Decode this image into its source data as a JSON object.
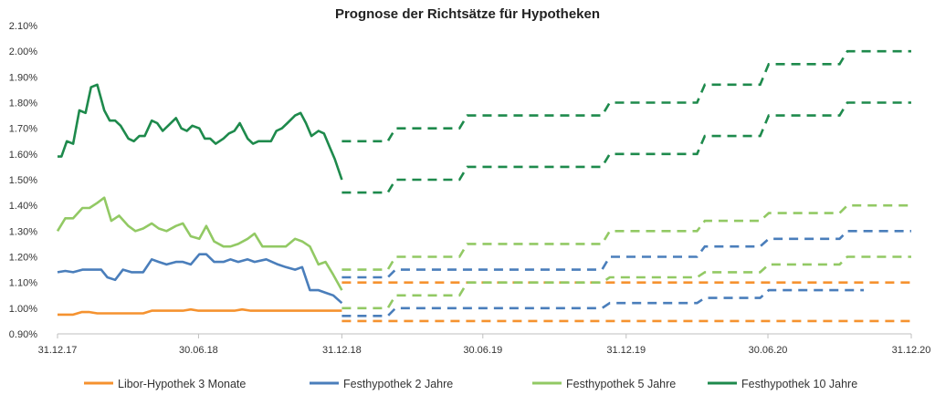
{
  "chart_data": {
    "type": "line",
    "title": "Prognose der Richtsätze für Hypotheken",
    "xlabel": "",
    "ylabel": "",
    "ylim": [
      0.009,
      0.021
    ],
    "y_ticks": [
      "0.90%",
      "1.00%",
      "1.10%",
      "1.20%",
      "1.30%",
      "1.40%",
      "1.50%",
      "1.60%",
      "1.70%",
      "1.80%",
      "1.90%",
      "2.00%",
      "2.10%"
    ],
    "x_ticks": [
      "31.12.17",
      "30.06.18",
      "31.12.18",
      "30.06.19",
      "31.12.19",
      "30.06.20",
      "31.12.20"
    ],
    "xlim": [
      "31.12.17",
      "31.12.20"
    ],
    "grid": false,
    "legend_position": "bottom",
    "colors": {
      "libor": "#F5922F",
      "fest2": "#4A7EBB",
      "fest5": "#92C964",
      "fest10": "#1E8A4C"
    },
    "series": [
      {
        "name": "Libor-Hypothek 3 Monate",
        "color_key": "libor",
        "historical": {
          "x": [
            "2017-12-31",
            "2018-01-10",
            "2018-01-20",
            "2018-01-31",
            "2018-02-10",
            "2018-02-20",
            "2018-03-01",
            "2018-03-31",
            "2018-04-10",
            "2018-04-20",
            "2018-05-01",
            "2018-05-20",
            "2018-06-01",
            "2018-06-10",
            "2018-06-20",
            "2018-06-30",
            "2018-07-15",
            "2018-08-01",
            "2018-08-15",
            "2018-08-25",
            "2018-09-05",
            "2018-09-20",
            "2018-10-10",
            "2018-11-01",
            "2018-12-01",
            "2018-12-31"
          ],
          "y": [
            0.00975,
            0.00975,
            0.00975,
            0.00985,
            0.00985,
            0.0098,
            0.0098,
            0.0098,
            0.0098,
            0.0098,
            0.0099,
            0.0099,
            0.0099,
            0.0099,
            0.00995,
            0.0099,
            0.0099,
            0.0099,
            0.0099,
            0.00995,
            0.0099,
            0.0099,
            0.0099,
            0.0099,
            0.0099,
            0.0099
          ]
        },
        "forecast_upper": [
          {
            "from": "2018-12-31",
            "to": "2020-12-31",
            "y": 0.011
          }
        ],
        "forecast_lower": [
          {
            "from": "2018-12-31",
            "to": "2020-12-31",
            "y": 0.0095
          }
        ]
      },
      {
        "name": "Festhypothek 2 Jahre",
        "color_key": "fest2",
        "historical": {
          "x": [
            "2017-12-31",
            "2018-01-10",
            "2018-01-20",
            "2018-02-01",
            "2018-02-15",
            "2018-02-25",
            "2018-03-05",
            "2018-03-15",
            "2018-03-25",
            "2018-04-05",
            "2018-04-20",
            "2018-05-01",
            "2018-05-10",
            "2018-05-20",
            "2018-06-01",
            "2018-06-10",
            "2018-06-20",
            "2018-07-01",
            "2018-07-10",
            "2018-07-20",
            "2018-08-01",
            "2018-08-10",
            "2018-08-20",
            "2018-09-01",
            "2018-09-10",
            "2018-09-25",
            "2018-10-10",
            "2018-10-20",
            "2018-11-01",
            "2018-11-10",
            "2018-11-20",
            "2018-12-01",
            "2018-12-10",
            "2018-12-20",
            "2018-12-31"
          ],
          "y": [
            0.0114,
            0.01145,
            0.0114,
            0.0115,
            0.0115,
            0.0115,
            0.0112,
            0.0111,
            0.0115,
            0.0114,
            0.0114,
            0.0119,
            0.0118,
            0.0117,
            0.0118,
            0.0118,
            0.0117,
            0.0121,
            0.0121,
            0.0118,
            0.0118,
            0.0119,
            0.0118,
            0.0119,
            0.0118,
            0.0119,
            0.0117,
            0.0116,
            0.0115,
            0.0116,
            0.0107,
            0.0107,
            0.0106,
            0.0105,
            0.0102
          ]
        },
        "forecast_upper": [
          {
            "from": "2018-12-31",
            "to": "2019-02-28",
            "y": 0.0112
          },
          {
            "from": "2019-03-10",
            "to": "2019-11-30",
            "y": 0.0115
          },
          {
            "from": "2019-12-10",
            "to": "2020-03-31",
            "y": 0.012
          },
          {
            "from": "2020-04-10",
            "to": "2020-06-20",
            "y": 0.0124
          },
          {
            "from": "2020-07-01",
            "to": "2020-09-30",
            "y": 0.0127
          },
          {
            "from": "2020-10-10",
            "to": "2020-12-31",
            "y": 0.013
          }
        ],
        "forecast_lower": [
          {
            "from": "2018-12-31",
            "to": "2019-02-28",
            "y": 0.0097
          },
          {
            "from": "2019-03-10",
            "to": "2019-11-30",
            "y": 0.01
          },
          {
            "from": "2019-12-10",
            "to": "2020-03-31",
            "y": 0.0102
          },
          {
            "from": "2020-04-10",
            "to": "2020-06-20",
            "y": 0.0104
          },
          {
            "from": "2020-07-01",
            "to": "2020-10-31",
            "y": 0.0107
          }
        ]
      },
      {
        "name": "Festhypothek 5 Jahre",
        "color_key": "fest5",
        "historical": {
          "x": [
            "2017-12-31",
            "2018-01-10",
            "2018-01-20",
            "2018-02-01",
            "2018-02-10",
            "2018-02-20",
            "2018-03-01",
            "2018-03-10",
            "2018-03-20",
            "2018-04-01",
            "2018-04-10",
            "2018-04-20",
            "2018-05-01",
            "2018-05-10",
            "2018-05-20",
            "2018-06-01",
            "2018-06-10",
            "2018-06-20",
            "2018-07-01",
            "2018-07-10",
            "2018-07-20",
            "2018-08-01",
            "2018-08-10",
            "2018-08-20",
            "2018-09-01",
            "2018-09-10",
            "2018-09-20",
            "2018-10-01",
            "2018-10-10",
            "2018-10-20",
            "2018-11-01",
            "2018-11-10",
            "2018-11-20",
            "2018-12-01",
            "2018-12-10",
            "2018-12-20",
            "2018-12-31"
          ],
          "y": [
            0.013,
            0.0135,
            0.0135,
            0.0139,
            0.0139,
            0.0141,
            0.0143,
            0.0134,
            0.0136,
            0.0132,
            0.013,
            0.0131,
            0.0133,
            0.0131,
            0.013,
            0.0132,
            0.0133,
            0.0128,
            0.0127,
            0.0132,
            0.0126,
            0.0124,
            0.0124,
            0.0125,
            0.0127,
            0.0129,
            0.0124,
            0.0124,
            0.0124,
            0.0124,
            0.0127,
            0.0126,
            0.0124,
            0.0117,
            0.0118,
            0.0113,
            0.0107
          ]
        },
        "forecast_upper": [
          {
            "from": "2018-12-31",
            "to": "2019-02-28",
            "y": 0.0115
          },
          {
            "from": "2019-03-10",
            "to": "2019-05-31",
            "y": 0.012
          },
          {
            "from": "2019-06-10",
            "to": "2019-11-30",
            "y": 0.0125
          },
          {
            "from": "2019-12-10",
            "to": "2020-03-31",
            "y": 0.013
          },
          {
            "from": "2020-04-10",
            "to": "2020-06-20",
            "y": 0.0134
          },
          {
            "from": "2020-07-01",
            "to": "2020-09-30",
            "y": 0.0137
          },
          {
            "from": "2020-10-10",
            "to": "2020-12-31",
            "y": 0.014
          }
        ],
        "forecast_lower": [
          {
            "from": "2018-12-31",
            "to": "2019-02-28",
            "y": 0.01
          },
          {
            "from": "2019-03-10",
            "to": "2019-05-31",
            "y": 0.0105
          },
          {
            "from": "2019-06-10",
            "to": "2019-11-30",
            "y": 0.011
          },
          {
            "from": "2019-12-10",
            "to": "2020-03-31",
            "y": 0.0112
          },
          {
            "from": "2020-04-10",
            "to": "2020-06-20",
            "y": 0.0114
          },
          {
            "from": "2020-07-01",
            "to": "2020-09-30",
            "y": 0.0117
          },
          {
            "from": "2020-10-10",
            "to": "2020-12-31",
            "y": 0.012
          }
        ]
      },
      {
        "name": "Festhypothek 10 Jahre",
        "color_key": "fest10",
        "historical": {
          "x": [
            "2017-12-31",
            "2018-01-05",
            "2018-01-12",
            "2018-01-20",
            "2018-01-28",
            "2018-02-05",
            "2018-02-12",
            "2018-02-20",
            "2018-03-01",
            "2018-03-08",
            "2018-03-15",
            "2018-03-22",
            "2018-04-01",
            "2018-04-08",
            "2018-04-15",
            "2018-04-22",
            "2018-05-01",
            "2018-05-08",
            "2018-05-15",
            "2018-05-22",
            "2018-06-01",
            "2018-06-08",
            "2018-06-15",
            "2018-06-22",
            "2018-07-01",
            "2018-07-08",
            "2018-07-15",
            "2018-07-22",
            "2018-08-01",
            "2018-08-08",
            "2018-08-15",
            "2018-08-22",
            "2018-09-01",
            "2018-09-08",
            "2018-09-15",
            "2018-09-22",
            "2018-10-01",
            "2018-10-08",
            "2018-10-15",
            "2018-10-22",
            "2018-11-01",
            "2018-11-08",
            "2018-11-15",
            "2018-11-22",
            "2018-12-01",
            "2018-12-08",
            "2018-12-15",
            "2018-12-22",
            "2018-12-31"
          ],
          "y": [
            0.0159,
            0.0159,
            0.0165,
            0.0164,
            0.0177,
            0.0176,
            0.0186,
            0.0187,
            0.0177,
            0.0173,
            0.0173,
            0.0171,
            0.0166,
            0.0165,
            0.0167,
            0.0167,
            0.0173,
            0.0172,
            0.0169,
            0.0171,
            0.0174,
            0.017,
            0.0169,
            0.0171,
            0.017,
            0.0166,
            0.0166,
            0.0164,
            0.0166,
            0.0168,
            0.0169,
            0.0172,
            0.0166,
            0.0164,
            0.0165,
            0.0165,
            0.0165,
            0.0169,
            0.017,
            0.0172,
            0.0175,
            0.0176,
            0.0172,
            0.0167,
            0.0169,
            0.0168,
            0.0163,
            0.0158,
            0.015
          ]
        },
        "forecast_upper": [
          {
            "from": "2018-12-31",
            "to": "2019-02-28",
            "y": 0.0165
          },
          {
            "from": "2019-03-10",
            "to": "2019-05-31",
            "y": 0.017
          },
          {
            "from": "2019-06-10",
            "to": "2019-11-30",
            "y": 0.0175
          },
          {
            "from": "2019-12-10",
            "to": "2020-03-31",
            "y": 0.018
          },
          {
            "from": "2020-04-10",
            "to": "2020-06-20",
            "y": 0.0187
          },
          {
            "from": "2020-07-01",
            "to": "2020-09-30",
            "y": 0.0195
          },
          {
            "from": "2020-10-10",
            "to": "2020-12-31",
            "y": 0.02
          }
        ],
        "forecast_lower": [
          {
            "from": "2018-12-31",
            "to": "2019-02-28",
            "y": 0.0145
          },
          {
            "from": "2019-03-10",
            "to": "2019-05-31",
            "y": 0.015
          },
          {
            "from": "2019-06-10",
            "to": "2019-11-30",
            "y": 0.0155
          },
          {
            "from": "2019-12-10",
            "to": "2020-03-31",
            "y": 0.016
          },
          {
            "from": "2020-04-10",
            "to": "2020-06-20",
            "y": 0.0167
          },
          {
            "from": "2020-07-01",
            "to": "2020-09-30",
            "y": 0.0175
          },
          {
            "from": "2020-10-10",
            "to": "2020-12-31",
            "y": 0.018
          }
        ]
      }
    ]
  }
}
